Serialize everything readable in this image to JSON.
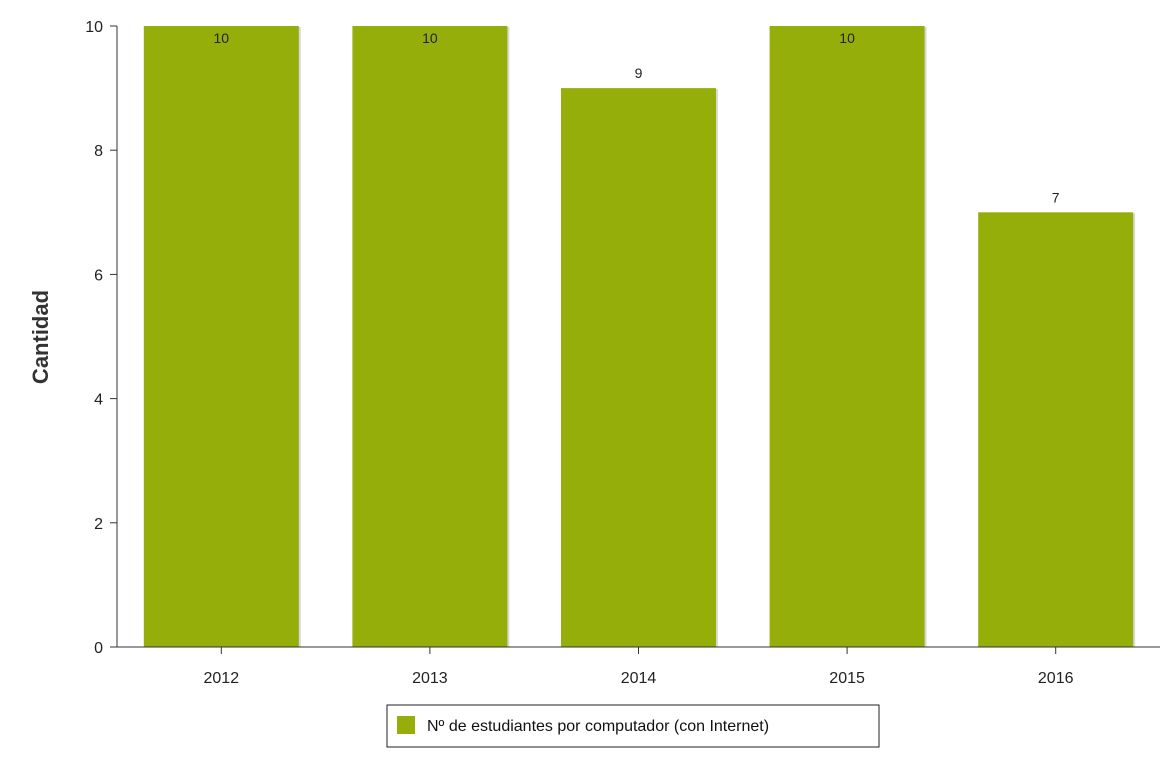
{
  "chart_data": {
    "type": "bar",
    "categories": [
      "2012",
      "2013",
      "2014",
      "2015",
      "2016"
    ],
    "series": [
      {
        "name": "Nº de estudiantes por computador (con Internet)",
        "values": [
          10,
          10,
          9,
          10,
          7
        ],
        "color": "#96ae0a"
      }
    ],
    "data_labels": [
      "10",
      "10",
      "9",
      "10",
      "7"
    ],
    "ylabel": "Cantidad",
    "xlabel": "",
    "ylim": [
      0,
      10
    ],
    "yticks": [
      "0",
      "2",
      "4",
      "6",
      "8",
      "10"
    ],
    "grid": false,
    "legend_position": "bottom-center"
  },
  "colors": {
    "axis": "#333333",
    "text": "#222222",
    "legend_border": "#222222"
  }
}
